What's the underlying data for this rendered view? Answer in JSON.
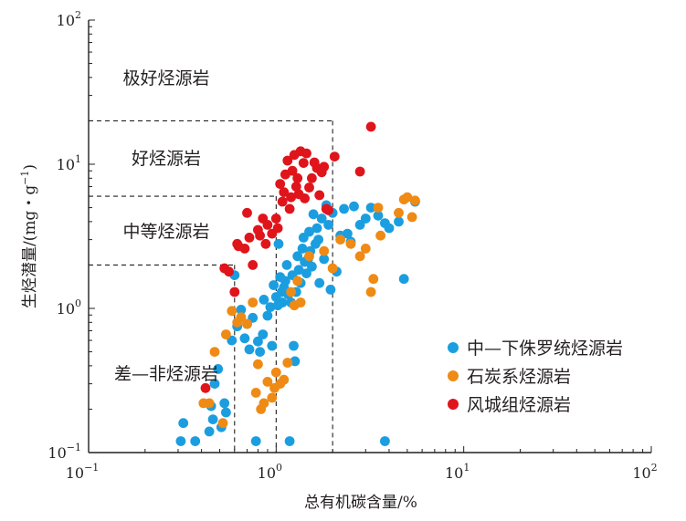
{
  "chart_data": {
    "type": "scatter",
    "xlabel": "总有机碳含量/%",
    "ylabel_main": "生烃潜量/(mg・g",
    "ylabel_sup": "−1",
    "ylabel_end": ")",
    "x_scale": "log",
    "y_scale": "log",
    "xlim": [
      0.1,
      100
    ],
    "ylim": [
      0.1,
      100
    ],
    "x_ticks": [
      {
        "value": 0.1,
        "base": "10",
        "exp": "−1"
      },
      {
        "value": 1,
        "base": "10",
        "exp": "0"
      },
      {
        "value": 10,
        "base": "10",
        "exp": "1"
      },
      {
        "value": 100,
        "base": "10",
        "exp": "2"
      }
    ],
    "y_ticks": [
      {
        "value": 0.1,
        "base": "10",
        "exp": "−1"
      },
      {
        "value": 1,
        "base": "10",
        "exp": "0"
      },
      {
        "value": 10,
        "base": "10",
        "exp": "1"
      },
      {
        "value": 100,
        "base": "10",
        "exp": "2"
      }
    ],
    "grid": false,
    "legend_position": "bottom-right",
    "zones": [
      {
        "label": "极好烃源岩",
        "toc_min": 2,
        "s_min": 20
      },
      {
        "label": "好烃源岩",
        "toc_min": 1,
        "s_min": 6
      },
      {
        "label": "中等烃源岩",
        "toc_min": 0.6,
        "s_min": 2
      },
      {
        "label": "差—非烃源岩",
        "toc_min": 0,
        "s_min": 0
      }
    ],
    "series": [
      {
        "name": "中—下侏罗统烃源岩",
        "color": "#1b9ee0",
        "points": [
          [
            0.31,
            0.12
          ],
          [
            0.32,
            0.16
          ],
          [
            0.37,
            0.12
          ],
          [
            0.44,
            0.14
          ],
          [
            0.45,
            0.21
          ],
          [
            0.46,
            0.17
          ],
          [
            0.47,
            0.3
          ],
          [
            0.49,
            0.38
          ],
          [
            0.51,
            0.15
          ],
          [
            0.53,
            0.22
          ],
          [
            0.54,
            0.19
          ],
          [
            0.58,
            0.6
          ],
          [
            0.6,
            1.7
          ],
          [
            0.62,
            0.75
          ],
          [
            0.65,
            0.98
          ],
          [
            0.68,
            0.62
          ],
          [
            0.7,
            0.78
          ],
          [
            0.72,
            0.52
          ],
          [
            0.75,
            0.86
          ],
          [
            0.78,
            0.12
          ],
          [
            0.8,
            0.59
          ],
          [
            0.82,
            0.5
          ],
          [
            0.85,
            0.66
          ],
          [
            0.86,
            1.15
          ],
          [
            0.9,
            0.89
          ],
          [
            0.93,
            1.02
          ],
          [
            0.95,
            0.55
          ],
          [
            0.97,
            1.45
          ],
          [
            1.0,
            1.2
          ],
          [
            1.02,
            1.05
          ],
          [
            1.03,
            2.8
          ],
          [
            1.05,
            1.65
          ],
          [
            1.07,
            1.3
          ],
          [
            1.08,
            1.1
          ],
          [
            1.1,
            1.4
          ],
          [
            1.12,
            1.55
          ],
          [
            1.14,
            2.0
          ],
          [
            1.16,
            1.25
          ],
          [
            1.18,
            0.12
          ],
          [
            1.2,
            1.1
          ],
          [
            1.22,
            1.7
          ],
          [
            1.24,
            0.55
          ],
          [
            1.26,
            0.43
          ],
          [
            1.28,
            1.3
          ],
          [
            1.3,
            2.3
          ],
          [
            1.32,
            1.85
          ],
          [
            1.35,
            1.5
          ],
          [
            1.38,
            2.6
          ],
          [
            1.4,
            3.1
          ],
          [
            1.42,
            2.1
          ],
          [
            1.45,
            1.75
          ],
          [
            1.48,
            2.2
          ],
          [
            1.5,
            3.4
          ],
          [
            1.52,
            2.5
          ],
          [
            1.55,
            1.95
          ],
          [
            1.58,
            4.5
          ],
          [
            1.62,
            2.8
          ],
          [
            1.65,
            3.6
          ],
          [
            1.68,
            3.0
          ],
          [
            1.7,
            1.5
          ],
          [
            1.75,
            4.2
          ],
          [
            1.8,
            2.2
          ],
          [
            1.85,
            5.2
          ],
          [
            1.9,
            3.8
          ],
          [
            1.95,
            1.35
          ],
          [
            2.0,
            4.6
          ],
          [
            2.1,
            1.8
          ],
          [
            2.2,
            3.2
          ],
          [
            2.3,
            4.9
          ],
          [
            2.4,
            3.3
          ],
          [
            2.5,
            2.9
          ],
          [
            2.6,
            5.1
          ],
          [
            2.8,
            3.8
          ],
          [
            3.0,
            4.2
          ],
          [
            3.2,
            5.0
          ],
          [
            3.5,
            4.4
          ],
          [
            3.8,
            3.9
          ],
          [
            4.0,
            3.6
          ],
          [
            4.5,
            4.0
          ],
          [
            4.8,
            1.6
          ],
          [
            3.8,
            0.12
          ],
          [
            5.5,
            5.5
          ]
        ]
      },
      {
        "name": "石炭系烃源岩",
        "color": "#ef8a14",
        "points": [
          [
            0.41,
            0.22
          ],
          [
            0.44,
            0.22
          ],
          [
            0.47,
            0.5
          ],
          [
            0.52,
            0.16
          ],
          [
            0.54,
            0.66
          ],
          [
            0.58,
            0.96
          ],
          [
            0.62,
            0.8
          ],
          [
            0.65,
            0.87
          ],
          [
            0.7,
            0.78
          ],
          [
            0.75,
            1.1
          ],
          [
            0.78,
            0.26
          ],
          [
            0.8,
            0.41
          ],
          [
            0.83,
            0.2
          ],
          [
            0.86,
            0.22
          ],
          [
            0.9,
            0.31
          ],
          [
            0.95,
            0.24
          ],
          [
            0.98,
            0.28
          ],
          [
            1.0,
            0.36
          ],
          [
            1.05,
            0.3
          ],
          [
            1.1,
            0.32
          ],
          [
            1.15,
            0.42
          ],
          [
            1.2,
            1.3
          ],
          [
            1.25,
            1.05
          ],
          [
            1.3,
            1.55
          ],
          [
            1.35,
            1.1
          ],
          [
            1.5,
            2.3
          ],
          [
            1.8,
            2.5
          ],
          [
            2.0,
            1.9
          ],
          [
            2.2,
            3.0
          ],
          [
            2.5,
            2.8
          ],
          [
            2.8,
            2.3
          ],
          [
            3.0,
            2.6
          ],
          [
            3.2,
            1.3
          ],
          [
            3.3,
            1.6
          ],
          [
            3.5,
            5.0
          ],
          [
            3.6,
            3.2
          ],
          [
            4.5,
            4.6
          ],
          [
            4.8,
            5.7
          ],
          [
            5.0,
            5.9
          ],
          [
            5.3,
            4.3
          ],
          [
            5.5,
            5.6
          ]
        ]
      },
      {
        "name": "风城组烃源岩",
        "color": "#e0141b",
        "points": [
          [
            0.42,
            0.28
          ],
          [
            0.53,
            1.9
          ],
          [
            0.56,
            1.8
          ],
          [
            0.6,
            1.3
          ],
          [
            0.62,
            2.8
          ],
          [
            0.63,
            2.7
          ],
          [
            0.68,
            2.6
          ],
          [
            0.7,
            4.6
          ],
          [
            0.72,
            3.1
          ],
          [
            0.75,
            2.0
          ],
          [
            0.8,
            3.5
          ],
          [
            0.82,
            3.2
          ],
          [
            0.85,
            4.2
          ],
          [
            0.88,
            2.8
          ],
          [
            0.9,
            3.8
          ],
          [
            0.95,
            3.3
          ],
          [
            1.0,
            4.2
          ],
          [
            1.02,
            3.6
          ],
          [
            1.05,
            7.3
          ],
          [
            1.08,
            5.5
          ],
          [
            1.1,
            6.4
          ],
          [
            1.12,
            8.5
          ],
          [
            1.15,
            10.6
          ],
          [
            1.18,
            4.9
          ],
          [
            1.2,
            5.9
          ],
          [
            1.22,
            9.0
          ],
          [
            1.25,
            11.6
          ],
          [
            1.28,
            7.0
          ],
          [
            1.3,
            8.0
          ],
          [
            1.32,
            6.2
          ],
          [
            1.35,
            12.3
          ],
          [
            1.4,
            10.2
          ],
          [
            1.42,
            5.8
          ],
          [
            1.45,
            11.9
          ],
          [
            1.5,
            6.9
          ],
          [
            1.55,
            8.0
          ],
          [
            1.6,
            10.3
          ],
          [
            1.65,
            9.4
          ],
          [
            1.7,
            6.1
          ],
          [
            1.75,
            8.8
          ],
          [
            1.8,
            9.6
          ],
          [
            1.85,
            4.9
          ],
          [
            1.9,
            4.8
          ],
          [
            2.05,
            11.3
          ],
          [
            2.8,
            8.9
          ],
          [
            3.2,
            18.2
          ]
        ]
      }
    ]
  }
}
